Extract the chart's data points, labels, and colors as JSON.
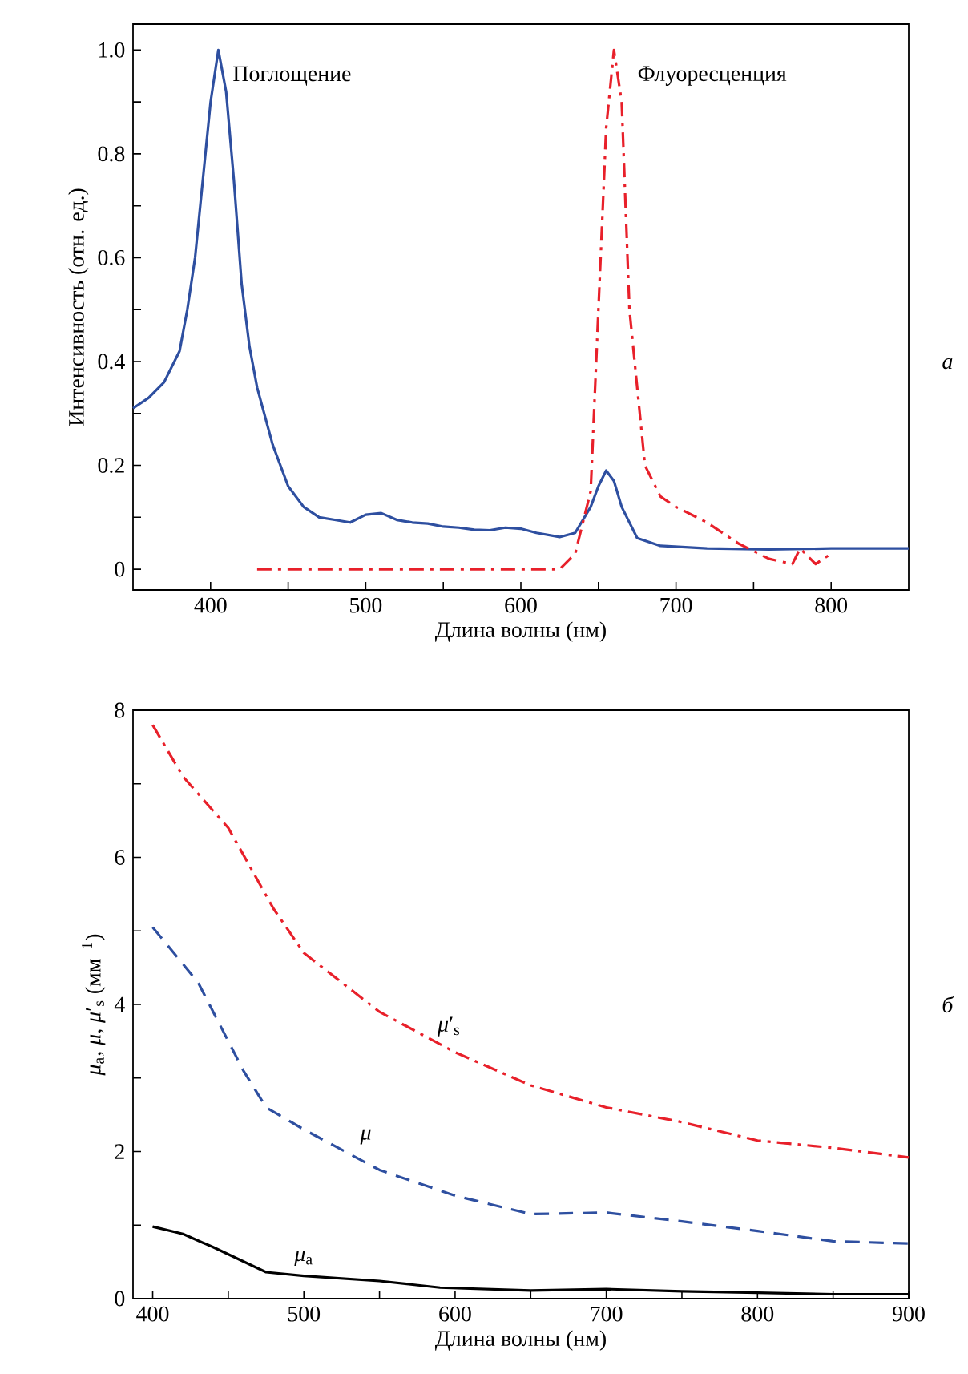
{
  "chart_data": [
    {
      "type": "line",
      "xlabel": "Длина волны (нм)",
      "ylabel": "Интенсивность (отн. ед.)",
      "xlim": [
        350,
        850
      ],
      "ylim": [
        -0.04,
        1.05
      ],
      "xticks": [
        400,
        {
          "value": 450,
          "label": null
        },
        500,
        {
          "value": 550,
          "label": null
        },
        600,
        {
          "value": 650,
          "label": null
        },
        700,
        {
          "value": 750,
          "label": null
        },
        800
      ],
      "yticks": [
        0,
        {
          "value": 0.1,
          "label": null
        },
        0.2,
        {
          "value": 0.3,
          "label": null
        },
        0.4,
        {
          "value": 0.5,
          "label": null
        },
        0.6,
        {
          "value": 0.7,
          "label": null
        },
        0.8,
        {
          "value": 0.9,
          "label": null
        },
        {
          "value": 1,
          "label": "1.0"
        }
      ],
      "series": [
        {
          "name": "Поглощение",
          "color": "#2e4fa0",
          "line_style": "solid",
          "x": [
            350,
            360,
            370,
            380,
            385,
            390,
            395,
            400,
            405,
            410,
            415,
            420,
            425,
            430,
            440,
            450,
            460,
            470,
            480,
            490,
            500,
            510,
            520,
            530,
            540,
            550,
            560,
            570,
            580,
            590,
            600,
            610,
            625,
            635,
            645,
            650,
            655,
            660,
            665,
            675,
            690,
            720,
            760,
            800,
            850
          ],
          "values": [
            0.31,
            0.33,
            0.36,
            0.42,
            0.5,
            0.6,
            0.75,
            0.9,
            1.0,
            0.92,
            0.75,
            0.55,
            0.43,
            0.35,
            0.24,
            0.16,
            0.12,
            0.1,
            0.095,
            0.09,
            0.105,
            0.108,
            0.095,
            0.09,
            0.088,
            0.082,
            0.08,
            0.076,
            0.075,
            0.08,
            0.078,
            0.07,
            0.062,
            0.07,
            0.12,
            0.16,
            0.19,
            0.17,
            0.12,
            0.06,
            0.045,
            0.04,
            0.038,
            0.04,
            0.04
          ]
        },
        {
          "name": "Флуоресценция",
          "color": "#e8202a",
          "line_style": "dashdot",
          "x": [
            430,
            500,
            560,
            600,
            625,
            635,
            645,
            650,
            655,
            660,
            665,
            670,
            680,
            690,
            700,
            720,
            740,
            760,
            775,
            780,
            790,
            800
          ],
          "values": [
            0.0,
            0.0,
            0.0,
            0.0,
            0.0,
            0.03,
            0.15,
            0.5,
            0.85,
            1.0,
            0.9,
            0.5,
            0.2,
            0.14,
            0.12,
            0.09,
            0.05,
            0.02,
            0.01,
            0.04,
            0.01,
            0.03
          ]
        }
      ],
      "annotations": [
        "а"
      ]
    },
    {
      "type": "line",
      "xlabel": "Длина волны (нм)",
      "ylabel": "*μ*$_{a}$, *μ*, *μ*′$_{s}$ (мм$^{−1}$)",
      "xlim": [
        387,
        900
      ],
      "ylim": [
        0,
        8
      ],
      "xticks": [
        400,
        {
          "value": 450,
          "label": null
        },
        500,
        {
          "value": 550,
          "label": null
        },
        600,
        {
          "value": 650,
          "label": null
        },
        700,
        {
          "value": 750,
          "label": null
        },
        800,
        {
          "value": 850,
          "label": null
        },
        900
      ],
      "yticks": [
        0,
        {
          "value": 1,
          "label": null
        },
        2,
        {
          "value": 3,
          "label": null
        },
        4,
        {
          "value": 5,
          "label": null
        },
        6,
        {
          "value": 7,
          "label": null
        },
        8
      ],
      "series": [
        {
          "name": "*μ*′$_{s}$",
          "color": "#e8202a",
          "line_style": "dashdot",
          "x": [
            400,
            420,
            450,
            480,
            500,
            550,
            600,
            650,
            700,
            750,
            800,
            850,
            900
          ],
          "values": [
            7.8,
            7.1,
            6.4,
            5.3,
            4.7,
            3.9,
            3.35,
            2.9,
            2.6,
            2.4,
            2.15,
            2.05,
            1.92
          ]
        },
        {
          "name": "*μ*",
          "color": "#2e4fa0",
          "line_style": "dashed",
          "x": [
            400,
            430,
            460,
            475,
            500,
            550,
            600,
            650,
            700,
            750,
            800,
            850,
            900
          ],
          "values": [
            5.05,
            4.3,
            3.1,
            2.6,
            2.3,
            1.75,
            1.4,
            1.15,
            1.17,
            1.05,
            0.92,
            0.78,
            0.75
          ]
        },
        {
          "name": "*μ*$_{a}$",
          "color": "#000000",
          "line_style": "solid",
          "x": [
            400,
            420,
            440,
            475,
            500,
            550,
            590,
            650,
            700,
            750,
            800,
            850,
            900
          ],
          "values": [
            0.98,
            0.88,
            0.7,
            0.36,
            0.31,
            0.24,
            0.15,
            0.11,
            0.13,
            0.1,
            0.08,
            0.06,
            0.06
          ]
        }
      ],
      "annotations": [
        "б"
      ]
    }
  ]
}
